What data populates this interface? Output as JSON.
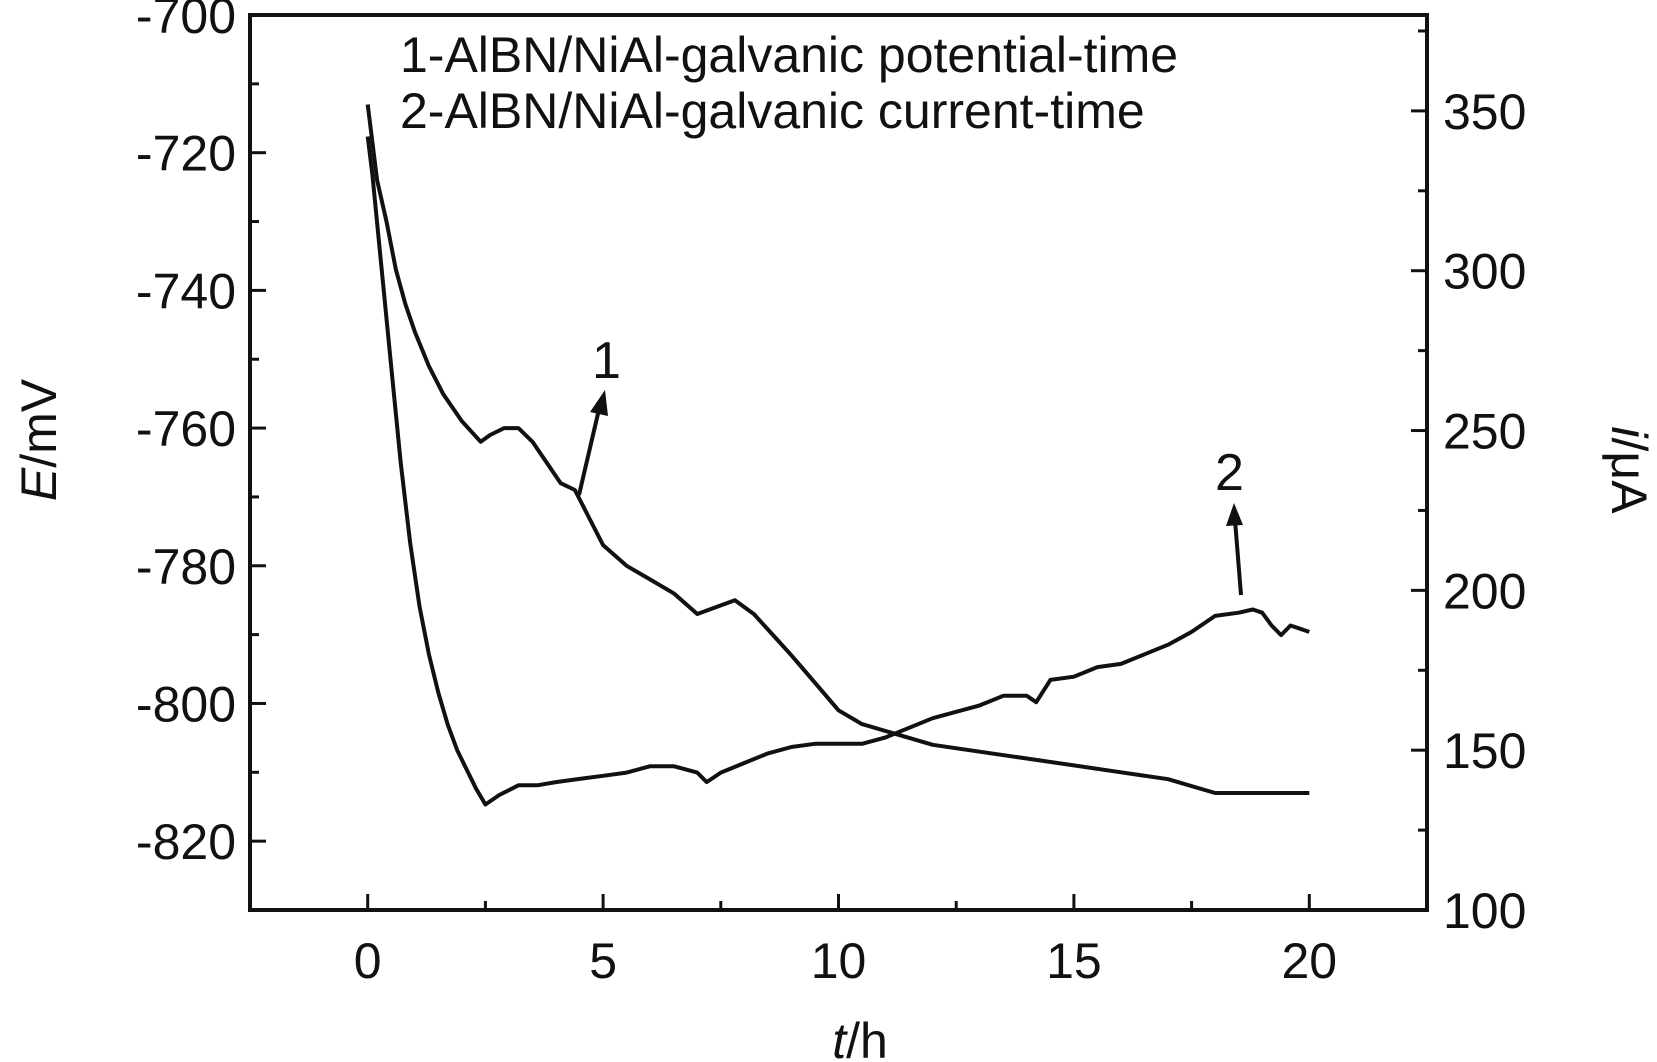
{
  "chart_data": {
    "type": "line",
    "xlabel": {
      "var": "t",
      "unit": "/h"
    },
    "ylabel_left": {
      "var": "E",
      "unit": "/mV"
    },
    "ylabel_right": {
      "var": "i",
      "unit": "/μA"
    },
    "xlim": [
      -2.5,
      22.5
    ],
    "ylim_left": [
      -830,
      -700
    ],
    "ylim_right": [
      100,
      380
    ],
    "x_ticks": [
      0,
      5,
      10,
      15,
      20
    ],
    "y_left_ticks": [
      -700,
      -720,
      -740,
      -760,
      -780,
      -800,
      -820
    ],
    "y_right_ticks": [
      100,
      150,
      200,
      250,
      300,
      350
    ],
    "legend": [
      "1-AlBN/NiAl-galvanic potential-time",
      "2-AlBN/NiAl-galvanic current-time"
    ],
    "legend_position": "top-right",
    "grid": false,
    "annotations": [
      "1",
      "2"
    ],
    "series": [
      {
        "name": "1",
        "axis": "left",
        "color": "#111111",
        "x": [
          0.0,
          0.2,
          0.4,
          0.6,
          0.8,
          1.0,
          1.3,
          1.6,
          2.0,
          2.4,
          2.6,
          2.9,
          3.2,
          3.5,
          3.8,
          4.1,
          4.4,
          4.7,
          5.0,
          5.5,
          6.0,
          6.5,
          7.0,
          7.4,
          7.8,
          8.2,
          8.6,
          9.0,
          9.5,
          10.0,
          10.5,
          11.0,
          12.0,
          13.0,
          14.0,
          15.0,
          16.0,
          17.0,
          18.0,
          18.5,
          19.0,
          19.5,
          20.0
        ],
        "y": [
          -713,
          -724,
          -730,
          -737,
          -742,
          -746,
          -751,
          -755,
          -759,
          -762,
          -761,
          -760,
          -760,
          -762,
          -765,
          -768,
          -769,
          -773,
          -777,
          -780,
          -782,
          -784,
          -787,
          -786,
          -785,
          -787,
          -790,
          -793,
          -797,
          -801,
          -803,
          -804,
          -806,
          -807,
          -808,
          -809,
          -810,
          -811,
          -813,
          -813,
          -813,
          -813,
          -813
        ]
      },
      {
        "name": "2",
        "axis": "right",
        "color": "#111111",
        "x": [
          0.0,
          0.1,
          0.3,
          0.5,
          0.7,
          0.9,
          1.1,
          1.3,
          1.5,
          1.7,
          1.9,
          2.1,
          2.3,
          2.5,
          2.8,
          3.2,
          3.6,
          4.0,
          4.5,
          5.0,
          5.5,
          6.0,
          6.5,
          7.0,
          7.2,
          7.5,
          8.0,
          8.5,
          9.0,
          9.5,
          10.0,
          10.5,
          11.0,
          11.5,
          12.0,
          12.5,
          13.0,
          13.5,
          14.0,
          14.2,
          14.5,
          15.0,
          15.5,
          16.0,
          16.5,
          17.0,
          17.5,
          18.0,
          18.5,
          18.8,
          19.0,
          19.2,
          19.4,
          19.6,
          19.8,
          20.0
        ],
        "y": [
          342,
          330,
          300,
          270,
          240,
          215,
          195,
          180,
          168,
          158,
          150,
          144,
          138,
          133,
          136,
          139,
          139,
          140,
          141,
          142,
          143,
          145,
          145,
          143,
          140,
          143,
          146,
          149,
          151,
          152,
          152,
          152,
          154,
          157,
          160,
          162,
          164,
          167,
          167,
          165,
          172,
          173,
          176,
          177,
          180,
          183,
          187,
          192,
          193,
          194,
          193,
          189,
          186,
          189,
          188,
          187
        ]
      }
    ]
  }
}
